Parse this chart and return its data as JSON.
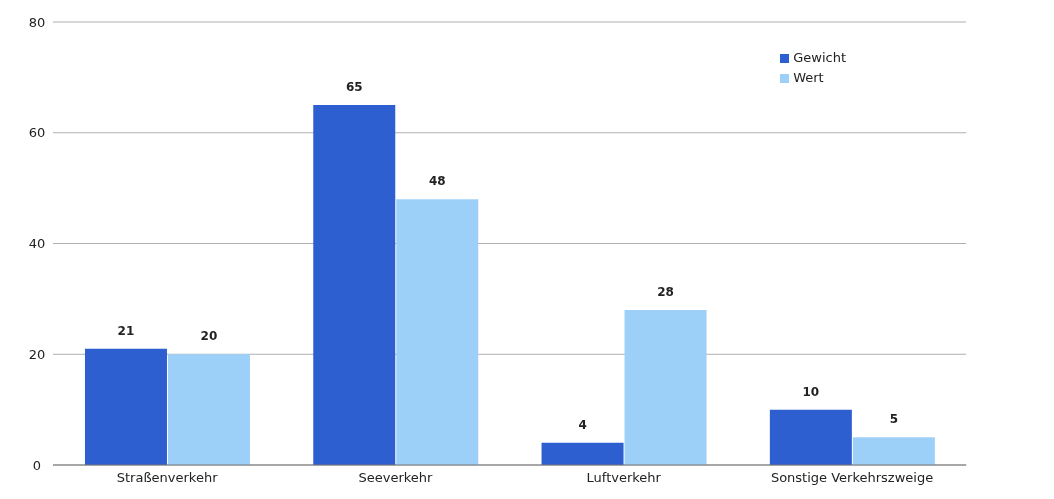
{
  "chart_data": {
    "type": "bar",
    "categories": [
      "Straßenverkehr",
      "Seeverkehr",
      "Luftverkehr",
      "Sonstige Verkehrszweige"
    ],
    "series": [
      {
        "name": "Gewicht",
        "color": "#2e5fd0",
        "values": [
          21,
          65,
          4,
          10
        ]
      },
      {
        "name": "Wert",
        "color": "#9dd0f8",
        "values": [
          20,
          48,
          28,
          5
        ]
      }
    ],
    "ylim": [
      0,
      80
    ],
    "yticks": [
      0,
      20,
      40,
      60,
      80
    ],
    "grid": "y",
    "legend": "top right",
    "data_labels": true
  }
}
